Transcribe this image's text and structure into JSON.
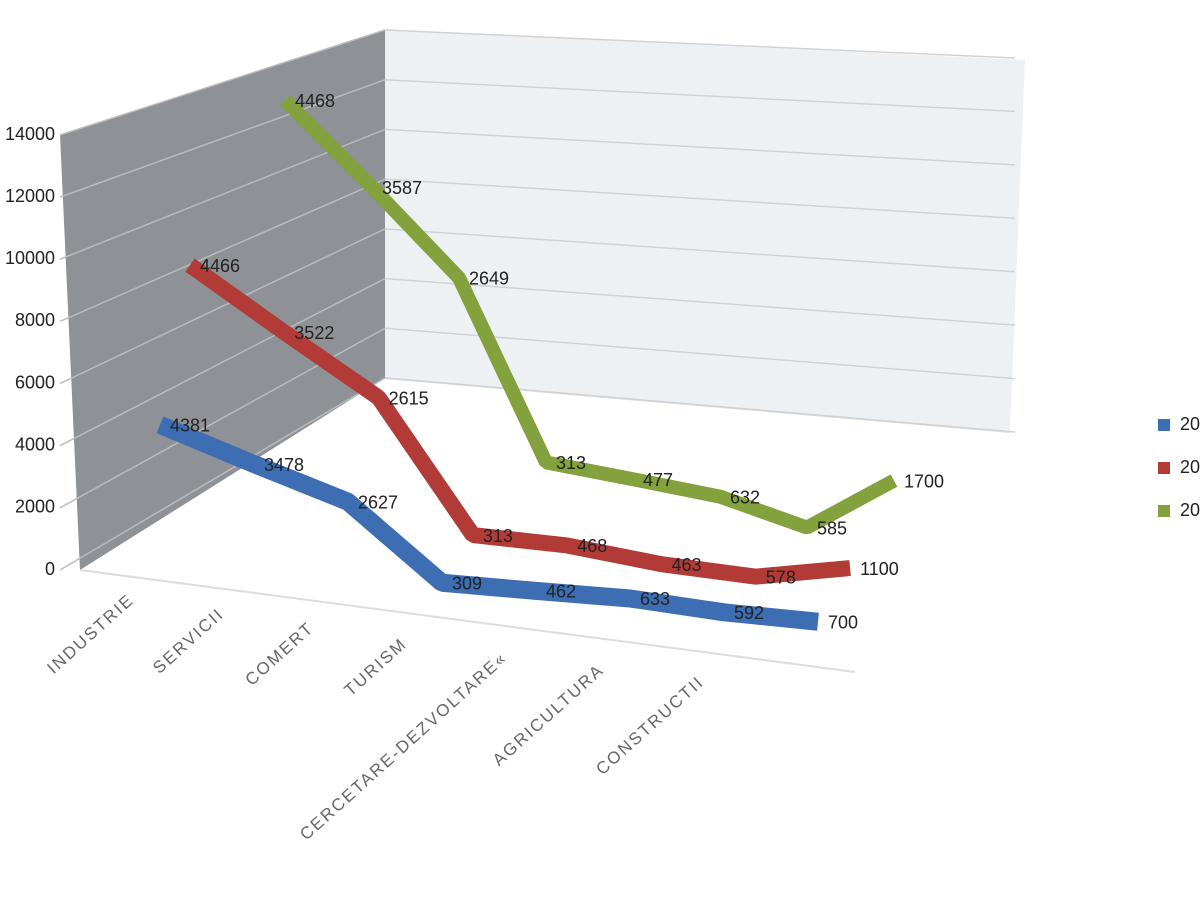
{
  "chart_data": {
    "type": "line3d",
    "categories": [
      "INDUSTRIE",
      "SERVICII",
      "COMERT",
      "TURISM",
      "CERCETARE-DEZVOLTARE«",
      "AGRICULTURA",
      "CONSTRUCTII",
      null
    ],
    "series": [
      {
        "name": "20",
        "color": "#3d6db3",
        "values": [
          4381,
          3478,
          2627,
          309,
          462,
          633,
          592,
          700
        ]
      },
      {
        "name": "20",
        "color": "#b23b38",
        "values": [
          4466,
          3522,
          2615,
          313,
          468,
          463,
          578,
          1100
        ]
      },
      {
        "name": "20",
        "color": "#83a13c",
        "values": [
          4468,
          3587,
          2649,
          313,
          477,
          632,
          585,
          1700
        ]
      }
    ],
    "ylim": [
      0,
      14000
    ],
    "yticks": [
      0,
      2000,
      4000,
      6000,
      8000,
      10000,
      12000,
      14000
    ],
    "grid": true
  }
}
